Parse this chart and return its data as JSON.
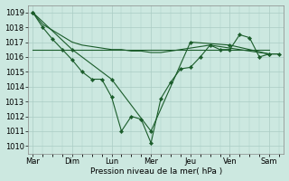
{
  "xlabel": "Pression niveau de la mer( hPa )",
  "ylim": [
    1009.5,
    1019.5
  ],
  "yticks": [
    1010,
    1011,
    1012,
    1013,
    1014,
    1015,
    1016,
    1017,
    1018,
    1019
  ],
  "day_labels": [
    "Mar",
    "Dim",
    "Lun",
    "Mer",
    "Jeu",
    "Ven",
    "Sam"
  ],
  "day_positions": [
    0,
    4,
    8,
    12,
    16,
    20,
    24
  ],
  "xlim": [
    -0.5,
    25.5
  ],
  "background_color": "#cce8e0",
  "grid_color": "#aaccC4",
  "line_color": "#1a5c2a",
  "line1_x": [
    0,
    1,
    2,
    3,
    4,
    5,
    6,
    7,
    8,
    9,
    10,
    11,
    12,
    13,
    14,
    15,
    16,
    17,
    18,
    19,
    20,
    21,
    22,
    23,
    24,
    25
  ],
  "line1_y": [
    1019.0,
    1018.0,
    1017.2,
    1016.5,
    1015.8,
    1015.0,
    1014.5,
    1014.5,
    1013.3,
    1011.0,
    1012.0,
    1011.8,
    1010.2,
    1013.2,
    1014.3,
    1015.2,
    1015.3,
    1016.0,
    1016.8,
    1016.5,
    1016.5,
    1017.5,
    1017.3,
    1016.0,
    1016.2,
    1016.2
  ],
  "line2_x": [
    0,
    4,
    8,
    12,
    16,
    20,
    24
  ],
  "line2_y": [
    1016.5,
    1016.5,
    1016.5,
    1016.5,
    1016.5,
    1016.5,
    1016.5
  ],
  "line3_x": [
    0,
    4,
    8,
    12,
    16,
    20,
    24
  ],
  "line3_y": [
    1019.0,
    1016.5,
    1014.5,
    1011.0,
    1017.0,
    1016.8,
    1016.2
  ],
  "line4_x": [
    0,
    1,
    2,
    3,
    4,
    5,
    6,
    7,
    8,
    9,
    10,
    11,
    12,
    13,
    14,
    15,
    16,
    17,
    18,
    19,
    20,
    21,
    22,
    23,
    24,
    25
  ],
  "line4_y": [
    1019.0,
    1018.2,
    1017.8,
    1017.4,
    1017.0,
    1016.8,
    1016.7,
    1016.6,
    1016.5,
    1016.5,
    1016.4,
    1016.4,
    1016.3,
    1016.3,
    1016.4,
    1016.5,
    1016.6,
    1016.7,
    1016.8,
    1016.7,
    1016.6,
    1016.5,
    1016.4,
    1016.3,
    1016.2,
    1016.2
  ]
}
